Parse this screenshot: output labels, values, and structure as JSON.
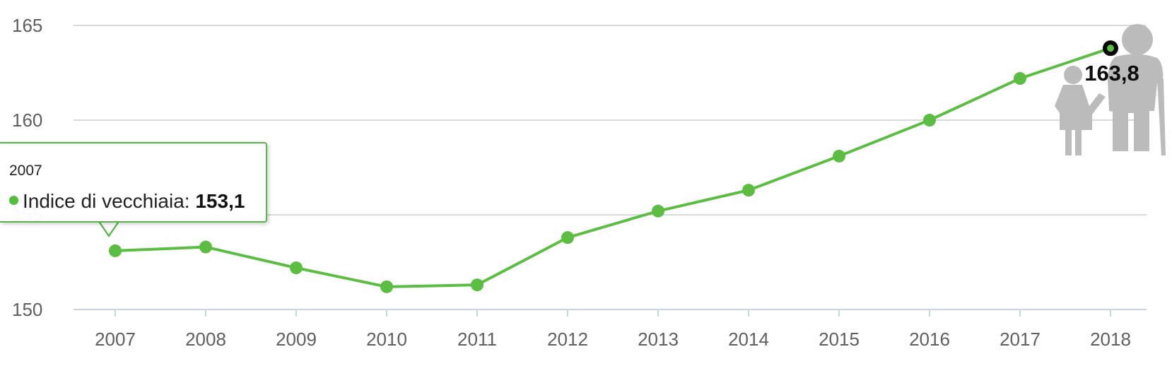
{
  "chart_data": {
    "type": "line",
    "categories": [
      "2007",
      "2008",
      "2009",
      "2010",
      "2011",
      "2012",
      "2013",
      "2014",
      "2015",
      "2016",
      "2017",
      "2018"
    ],
    "series": [
      {
        "name": "Indice di vecchiaia",
        "values": [
          153.1,
          153.3,
          152.2,
          151.2,
          151.3,
          153.8,
          155.2,
          156.3,
          158.1,
          160.0,
          162.2,
          163.8
        ]
      }
    ],
    "ylim": [
      150,
      165
    ],
    "yticks": [
      "150",
      "155",
      "160",
      "165"
    ],
    "grid": true,
    "colors": {
      "line": "#5bbd42",
      "grid": "#d9d9d9",
      "axis": "#c8d4e8",
      "tooltip_border": "#54b848",
      "figure": "#b8b8b8"
    },
    "tooltip": {
      "year": "2007",
      "label": "Indice di vecchiaia:",
      "value": "153,1"
    },
    "end_label": "163,8"
  }
}
